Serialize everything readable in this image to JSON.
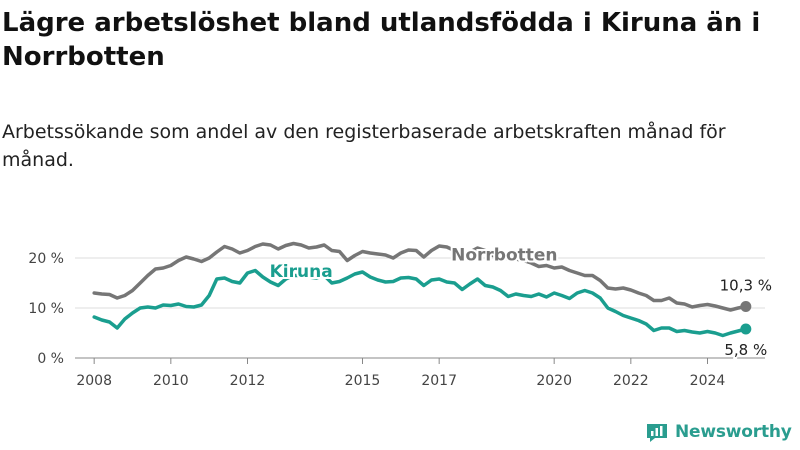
{
  "title": "Lägre arbetslöshet bland utlandsfödda i Kiruna än i Norrbotten",
  "subtitle": "Arbetssökande som andel av den registerbaserade arbetskraften månad för månad.",
  "brand": {
    "name": "Newsworthy",
    "icon": "newsworthy-logo-icon",
    "color": "#2a9d8f"
  },
  "chart_data": {
    "type": "line",
    "x_unit": "year",
    "xlim": [
      2007.5,
      2025.5
    ],
    "ylim": [
      0,
      25
    ],
    "y_ticks": [
      {
        "value": 0,
        "label": "0 %"
      },
      {
        "value": 10,
        "label": "10 %"
      },
      {
        "value": 20,
        "label": "20 %"
      }
    ],
    "x_ticks": [
      {
        "value": 2008,
        "label": "2008"
      },
      {
        "value": 2010,
        "label": "2010"
      },
      {
        "value": 2012,
        "label": "2012"
      },
      {
        "value": 2015,
        "label": "2015"
      },
      {
        "value": 2017,
        "label": "2017"
      },
      {
        "value": 2020,
        "label": "2020"
      },
      {
        "value": 2022,
        "label": "2022"
      },
      {
        "value": 2024,
        "label": "2024"
      }
    ],
    "grid": "horizontal",
    "series": [
      {
        "name": "Norrbotten",
        "color": "#767676",
        "end_label": "10,3 %",
        "points": [
          [
            2008.0,
            13.0
          ],
          [
            2008.2,
            12.8
          ],
          [
            2008.4,
            12.7
          ],
          [
            2008.6,
            12.0
          ],
          [
            2008.8,
            12.5
          ],
          [
            2009.0,
            13.5
          ],
          [
            2009.2,
            15.0
          ],
          [
            2009.4,
            16.5
          ],
          [
            2009.6,
            17.8
          ],
          [
            2009.8,
            18.0
          ],
          [
            2010.0,
            18.5
          ],
          [
            2010.2,
            19.5
          ],
          [
            2010.4,
            20.2
          ],
          [
            2010.6,
            19.8
          ],
          [
            2010.8,
            19.3
          ],
          [
            2011.0,
            20.0
          ],
          [
            2011.2,
            21.2
          ],
          [
            2011.4,
            22.3
          ],
          [
            2011.6,
            21.8
          ],
          [
            2011.8,
            21.0
          ],
          [
            2012.0,
            21.5
          ],
          [
            2012.2,
            22.3
          ],
          [
            2012.4,
            22.8
          ],
          [
            2012.6,
            22.6
          ],
          [
            2012.8,
            21.8
          ],
          [
            2013.0,
            22.5
          ],
          [
            2013.2,
            22.9
          ],
          [
            2013.4,
            22.6
          ],
          [
            2013.6,
            22.0
          ],
          [
            2013.8,
            22.2
          ],
          [
            2014.0,
            22.6
          ],
          [
            2014.2,
            21.5
          ],
          [
            2014.4,
            21.3
          ],
          [
            2014.6,
            19.5
          ],
          [
            2014.8,
            20.5
          ],
          [
            2015.0,
            21.3
          ],
          [
            2015.2,
            21.0
          ],
          [
            2015.4,
            20.8
          ],
          [
            2015.6,
            20.6
          ],
          [
            2015.8,
            20.0
          ],
          [
            2016.0,
            21.0
          ],
          [
            2016.2,
            21.6
          ],
          [
            2016.4,
            21.5
          ],
          [
            2016.6,
            20.2
          ],
          [
            2016.8,
            21.5
          ],
          [
            2017.0,
            22.4
          ],
          [
            2017.2,
            22.2
          ],
          [
            2017.4,
            21.5
          ],
          [
            2017.6,
            20.2
          ],
          [
            2017.8,
            21.2
          ],
          [
            2018.0,
            22.0
          ],
          [
            2018.2,
            21.5
          ],
          [
            2018.4,
            20.5
          ],
          [
            2018.6,
            20.3
          ],
          [
            2018.8,
            19.8
          ],
          [
            2019.0,
            19.8
          ],
          [
            2019.2,
            19.5
          ],
          [
            2019.4,
            19.0
          ],
          [
            2019.6,
            18.3
          ],
          [
            2019.8,
            18.5
          ],
          [
            2020.0,
            18.0
          ],
          [
            2020.2,
            18.2
          ],
          [
            2020.4,
            17.5
          ],
          [
            2020.6,
            17.0
          ],
          [
            2020.8,
            16.5
          ],
          [
            2021.0,
            16.5
          ],
          [
            2021.2,
            15.5
          ],
          [
            2021.4,
            14.0
          ],
          [
            2021.6,
            13.8
          ],
          [
            2021.8,
            14.0
          ],
          [
            2022.0,
            13.6
          ],
          [
            2022.2,
            13.0
          ],
          [
            2022.4,
            12.5
          ],
          [
            2022.6,
            11.5
          ],
          [
            2022.8,
            11.5
          ],
          [
            2023.0,
            12.0
          ],
          [
            2023.2,
            11.0
          ],
          [
            2023.4,
            10.8
          ],
          [
            2023.6,
            10.2
          ],
          [
            2023.8,
            10.5
          ],
          [
            2024.0,
            10.7
          ],
          [
            2024.2,
            10.4
          ],
          [
            2024.4,
            10.0
          ],
          [
            2024.6,
            9.6
          ],
          [
            2024.8,
            10.0
          ],
          [
            2025.0,
            10.3
          ]
        ]
      },
      {
        "name": "Kiruna",
        "color": "#1a9e8f",
        "end_label": "5,8 %",
        "points": [
          [
            2008.0,
            8.2
          ],
          [
            2008.2,
            7.6
          ],
          [
            2008.4,
            7.2
          ],
          [
            2008.6,
            6.0
          ],
          [
            2008.8,
            7.8
          ],
          [
            2009.0,
            9.0
          ],
          [
            2009.2,
            10.0
          ],
          [
            2009.4,
            10.2
          ],
          [
            2009.6,
            10.0
          ],
          [
            2009.8,
            10.6
          ],
          [
            2010.0,
            10.5
          ],
          [
            2010.2,
            10.8
          ],
          [
            2010.4,
            10.3
          ],
          [
            2010.6,
            10.2
          ],
          [
            2010.8,
            10.6
          ],
          [
            2011.0,
            12.5
          ],
          [
            2011.2,
            15.8
          ],
          [
            2011.4,
            16.0
          ],
          [
            2011.6,
            15.3
          ],
          [
            2011.8,
            15.0
          ],
          [
            2012.0,
            17.0
          ],
          [
            2012.2,
            17.5
          ],
          [
            2012.4,
            16.2
          ],
          [
            2012.6,
            15.2
          ],
          [
            2012.8,
            14.5
          ],
          [
            2013.0,
            15.8
          ],
          [
            2013.2,
            16.5
          ],
          [
            2013.4,
            16.5
          ],
          [
            2013.6,
            16.2
          ],
          [
            2013.8,
            16.0
          ],
          [
            2014.0,
            16.5
          ],
          [
            2014.2,
            15.0
          ],
          [
            2014.4,
            15.3
          ],
          [
            2014.6,
            16.0
          ],
          [
            2014.8,
            16.8
          ],
          [
            2015.0,
            17.2
          ],
          [
            2015.2,
            16.2
          ],
          [
            2015.4,
            15.6
          ],
          [
            2015.6,
            15.2
          ],
          [
            2015.8,
            15.3
          ],
          [
            2016.0,
            16.0
          ],
          [
            2016.2,
            16.1
          ],
          [
            2016.4,
            15.8
          ],
          [
            2016.6,
            14.5
          ],
          [
            2016.8,
            15.6
          ],
          [
            2017.0,
            15.8
          ],
          [
            2017.2,
            15.2
          ],
          [
            2017.4,
            15.0
          ],
          [
            2017.6,
            13.7
          ],
          [
            2017.8,
            14.8
          ],
          [
            2018.0,
            15.8
          ],
          [
            2018.2,
            14.5
          ],
          [
            2018.4,
            14.2
          ],
          [
            2018.6,
            13.5
          ],
          [
            2018.8,
            12.3
          ],
          [
            2019.0,
            12.8
          ],
          [
            2019.2,
            12.5
          ],
          [
            2019.4,
            12.3
          ],
          [
            2019.6,
            12.8
          ],
          [
            2019.8,
            12.2
          ],
          [
            2020.0,
            13.0
          ],
          [
            2020.2,
            12.5
          ],
          [
            2020.4,
            11.9
          ],
          [
            2020.6,
            13.0
          ],
          [
            2020.8,
            13.5
          ],
          [
            2021.0,
            13.0
          ],
          [
            2021.2,
            12.0
          ],
          [
            2021.4,
            10.0
          ],
          [
            2021.6,
            9.3
          ],
          [
            2021.8,
            8.5
          ],
          [
            2022.0,
            8.0
          ],
          [
            2022.2,
            7.5
          ],
          [
            2022.4,
            6.8
          ],
          [
            2022.6,
            5.5
          ],
          [
            2022.8,
            6.0
          ],
          [
            2023.0,
            6.0
          ],
          [
            2023.2,
            5.3
          ],
          [
            2023.4,
            5.5
          ],
          [
            2023.6,
            5.2
          ],
          [
            2023.8,
            5.0
          ],
          [
            2024.0,
            5.3
          ],
          [
            2024.2,
            5.0
          ],
          [
            2024.4,
            4.5
          ],
          [
            2024.6,
            5.0
          ],
          [
            2024.8,
            5.4
          ],
          [
            2025.0,
            5.8
          ]
        ]
      }
    ]
  }
}
